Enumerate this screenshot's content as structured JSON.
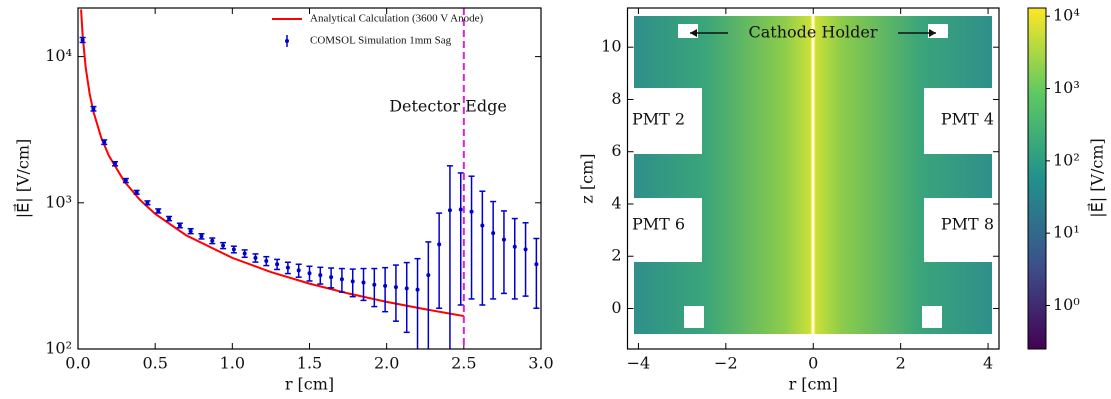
{
  "chart_data": [
    {
      "type": "line",
      "xlabel": "r [cm]",
      "ylabel": "|E⃗| [V/cm]",
      "xlim": [
        0,
        3.0
      ],
      "ylim": [
        100,
        21500
      ],
      "ylog": true,
      "xticks": [
        {
          "value": 0,
          "label": "0.0"
        },
        {
          "value": 0.5,
          "label": "0.5"
        },
        {
          "value": 1.0,
          "label": "1.0"
        },
        {
          "value": 1.5,
          "label": "1.5"
        },
        {
          "value": 2.0,
          "label": "2.0"
        },
        {
          "value": 2.5,
          "label": "2.5"
        },
        {
          "value": 3.0,
          "label": "3.0"
        }
      ],
      "yticks": [
        {
          "value": 100,
          "label": "10²"
        },
        {
          "value": 1000,
          "label": "10³"
        },
        {
          "value": 10000,
          "label": "10⁴"
        }
      ],
      "series": [
        {
          "name": "Analytical Calculation (3600 V Anode)",
          "color": "#ff0000",
          "x": [
            0.02,
            0.03,
            0.05,
            0.075,
            0.1,
            0.15,
            0.2,
            0.3,
            0.4,
            0.5,
            0.7,
            1.0,
            1.25,
            1.5,
            1.75,
            2.0,
            2.25,
            2.5
          ],
          "values": [
            21000,
            14000,
            8400,
            5600,
            4200,
            2800,
            2100,
            1400,
            1050,
            840,
            600,
            420,
            336,
            280,
            240,
            210,
            187,
            168
          ]
        },
        {
          "name": "COMSOL Simulation 1mm Sag",
          "color": "#0000cc",
          "errorbar": true,
          "x": [
            0.03,
            0.1,
            0.17,
            0.24,
            0.31,
            0.38,
            0.45,
            0.52,
            0.59,
            0.66,
            0.73,
            0.8,
            0.87,
            0.94,
            1.01,
            1.08,
            1.15,
            1.22,
            1.29,
            1.36,
            1.43,
            1.5,
            1.57,
            1.64,
            1.71,
            1.78,
            1.85,
            1.92,
            1.99,
            2.06,
            2.13,
            2.2,
            2.27,
            2.34,
            2.41,
            2.48,
            2.55,
            2.62,
            2.69,
            2.76,
            2.83,
            2.9,
            2.97
          ],
          "values": [
            13000,
            4400,
            2600,
            1850,
            1420,
            1180,
            1000,
            880,
            780,
            700,
            640,
            590,
            550,
            510,
            480,
            450,
            420,
            400,
            380,
            360,
            345,
            330,
            320,
            310,
            300,
            290,
            285,
            275,
            270,
            265,
            260,
            255,
            320,
            520,
            890,
            900,
            870,
            700,
            620,
            560,
            500,
            480,
            380
          ],
          "errors": [
            500,
            150,
            90,
            60,
            45,
            35,
            30,
            28,
            26,
            25,
            25,
            24,
            24,
            24,
            25,
            26,
            27,
            28,
            30,
            32,
            35,
            38,
            42,
            48,
            55,
            62,
            70,
            80,
            90,
            110,
            130,
            160,
            220,
            330,
            900,
            700,
            650,
            500,
            400,
            320,
            280,
            250,
            190
          ]
        }
      ],
      "vline": {
        "x": 2.5,
        "color": "#e020e0"
      },
      "annotation": "Detector Edge",
      "legend": "upper right"
    },
    {
      "type": "heatmap",
      "xlabel": "r [cm]",
      "ylabel": "z [cm]",
      "xlim": [
        -4.25,
        4.25
      ],
      "ylim": [
        -1.55,
        11.5
      ],
      "xticks": [
        {
          "value": -4,
          "label": "−4"
        },
        {
          "value": -2,
          "label": "−2"
        },
        0,
        2,
        4
      ],
      "yticks": [
        0,
        2,
        4,
        6,
        8,
        10
      ],
      "annotations": [
        "Cathode Holder",
        "PMT 2",
        "PMT 4",
        "PMT 6",
        "PMT 8"
      ],
      "colorbar": {
        "label": "|E⃗| [V/cm]",
        "lim": [
          0.25,
          13000
        ],
        "log": true,
        "ticks": [
          {
            "value": 1,
            "label": "10⁰"
          },
          {
            "value": 10,
            "label": "10¹"
          },
          {
            "value": 100,
            "label": "10²"
          },
          {
            "value": 1000,
            "label": "10³"
          },
          {
            "value": 10000,
            "label": "10⁴"
          }
        ]
      }
    }
  ]
}
